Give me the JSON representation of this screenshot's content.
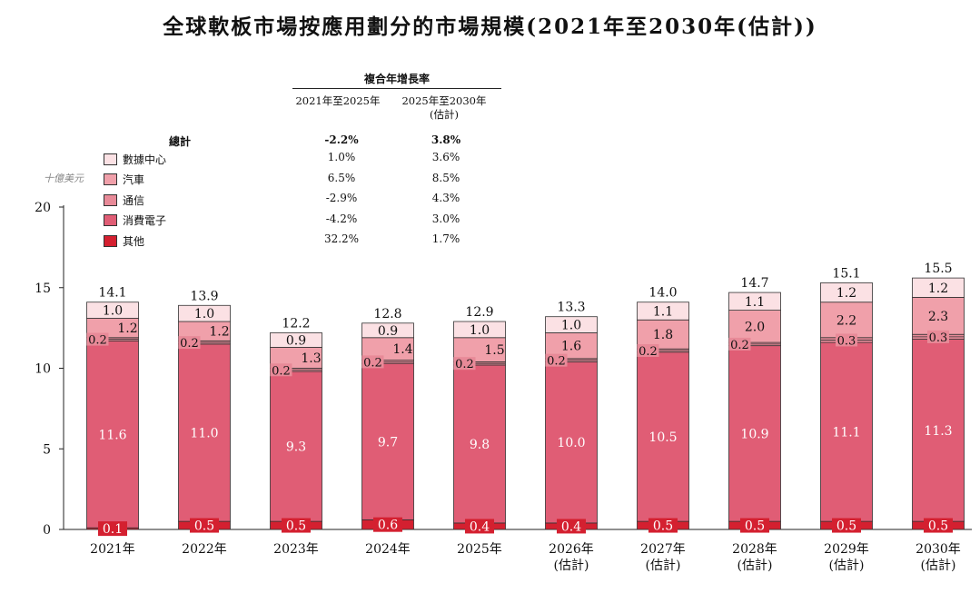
{
  "title": "全球軟板市場按應用劃分的市場規模(2021年至2030年(估計))",
  "unit": "十億美元",
  "cagr": {
    "heading": "複合年增長率",
    "col1": "2021年至2025年",
    "col2_line1": "2025年至2030年",
    "col2_line2": "(估計)",
    "total_label": "總計",
    "total_1": "-2.2%",
    "total_2": "3.8%"
  },
  "legend": [
    {
      "name": "數據中心",
      "color": "#fbe1e4",
      "cagr1": "1.0%",
      "cagr2": "3.6%"
    },
    {
      "name": "汽車",
      "color": "#f0a0aa",
      "cagr1": "6.5%",
      "cagr2": "8.5%"
    },
    {
      "name": "通信",
      "color": "#e88a98",
      "cagr1": "-2.9%",
      "cagr2": "4.3%"
    },
    {
      "name": "消費電子",
      "color": "#e05d75",
      "cagr1": "-4.2%",
      "cagr2": "3.0%"
    },
    {
      "name": "其他",
      "color": "#d42030",
      "cagr1": "32.2%",
      "cagr2": "1.7%"
    }
  ],
  "chart_data": {
    "type": "bar",
    "stacked": true,
    "ylim": [
      0,
      20
    ],
    "yticks": [
      0,
      5,
      10,
      15,
      20
    ],
    "categories": [
      "2021年",
      "2022年",
      "2023年",
      "2024年",
      "2025年",
      "2026年\n(估計)",
      "2027年\n(估計)",
      "2028年\n(估計)",
      "2029年\n(估計)",
      "2030年\n(估計)"
    ],
    "series": [
      {
        "name": "其他",
        "values": [
          0.1,
          0.5,
          0.5,
          0.6,
          0.4,
          0.4,
          0.5,
          0.5,
          0.5,
          0.5
        ]
      },
      {
        "name": "消費電子",
        "values": [
          11.6,
          11.0,
          9.3,
          9.7,
          9.8,
          10.0,
          10.5,
          10.9,
          11.1,
          11.3
        ]
      },
      {
        "name": "通信",
        "values": [
          0.2,
          0.2,
          0.2,
          0.2,
          0.2,
          0.2,
          0.2,
          0.2,
          0.3,
          0.3
        ]
      },
      {
        "name": "汽車",
        "values": [
          1.2,
          1.2,
          1.3,
          1.4,
          1.5,
          1.6,
          1.8,
          2.0,
          2.2,
          2.3
        ]
      },
      {
        "name": "數據中心",
        "values": [
          1.0,
          1.0,
          0.9,
          0.9,
          1.0,
          1.0,
          1.1,
          1.1,
          1.2,
          1.2
        ]
      }
    ],
    "totals": [
      "14.1",
      "13.9",
      "12.2",
      "12.8",
      "12.9",
      "13.3",
      "14.0",
      "14.7",
      "15.1",
      "15.5"
    ],
    "segment_labels": [
      [
        "0.1",
        "11.6",
        "0.2",
        "1.2",
        "1.0"
      ],
      [
        "0.5",
        "11.0",
        "0.2",
        "1.2",
        "1.0"
      ],
      [
        "0.5",
        "9.3",
        "0.2",
        "1.3",
        "0.9"
      ],
      [
        "0.6",
        "9.7",
        "0.2",
        "1.4",
        "0.9"
      ],
      [
        "0.4",
        "9.8",
        "0.2",
        "1.5",
        "1.0"
      ],
      [
        "0.4",
        "10.0",
        "0.2",
        "1.6",
        "1.0"
      ],
      [
        "0.5",
        "10.5",
        "0.2",
        "1.8",
        "1.1"
      ],
      [
        "0.5",
        "10.9",
        "0.2",
        "2.0",
        "1.1"
      ],
      [
        "0.5",
        "11.1",
        "0.3",
        "2.2",
        "1.2"
      ],
      [
        "0.5",
        "11.3",
        "0.3",
        "2.3",
        "1.2"
      ]
    ],
    "legend_position": "top-left"
  }
}
